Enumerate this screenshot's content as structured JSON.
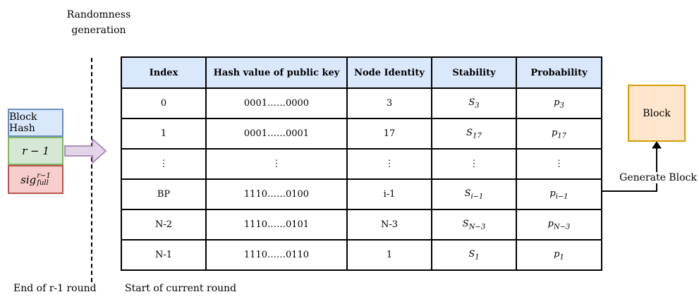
{
  "randomness": {
    "line1": "Randomness",
    "line2": "generation"
  },
  "stack": {
    "block_hash": "Block Hash",
    "round_main": "r − 1",
    "sig_main": "sig",
    "sig_sup": "r−1",
    "sig_sub": "full"
  },
  "table": {
    "headers": [
      "Index",
      "Hash value of public key",
      "Node Identity",
      "Stability",
      "Probability"
    ],
    "rows": [
      {
        "index": "0",
        "hash": "0001……0000",
        "node": "3",
        "s_sub": "3",
        "p_sub": "3"
      },
      {
        "index": "1",
        "hash": "0001……0001",
        "node": "17",
        "s_sub": "17",
        "p_sub": "17"
      },
      {
        "index": "⋮",
        "hash": "⋮",
        "node": "⋮",
        "s_sub": "⋮",
        "p_sub": "⋮"
      },
      {
        "index": "BP",
        "hash": "1110……0100",
        "node": "i-1",
        "s_sub": "i−1",
        "p_sub": "i−1"
      },
      {
        "index": "N-2",
        "hash": "1110……0101",
        "node": "N-3",
        "s_sub": "N−3",
        "p_sub": "N−3"
      },
      {
        "index": "N-1",
        "hash": "1110……0110",
        "node": "1",
        "s_sub": "1",
        "p_sub": "1"
      }
    ],
    "stability_symbol": "S",
    "probability_symbol": "p"
  },
  "block_label": "Block",
  "generate_label": "Generate Block",
  "bottom": {
    "end_round": "End of r-1 round",
    "start_round": "Start of current round"
  },
  "colors": {
    "header_bg": "#dae8fc",
    "block_bg": "#ffe6cc",
    "block_border": "#d79b00",
    "arrow_fill": "#e1d5e7",
    "arrow_stroke": "#9673a6"
  }
}
